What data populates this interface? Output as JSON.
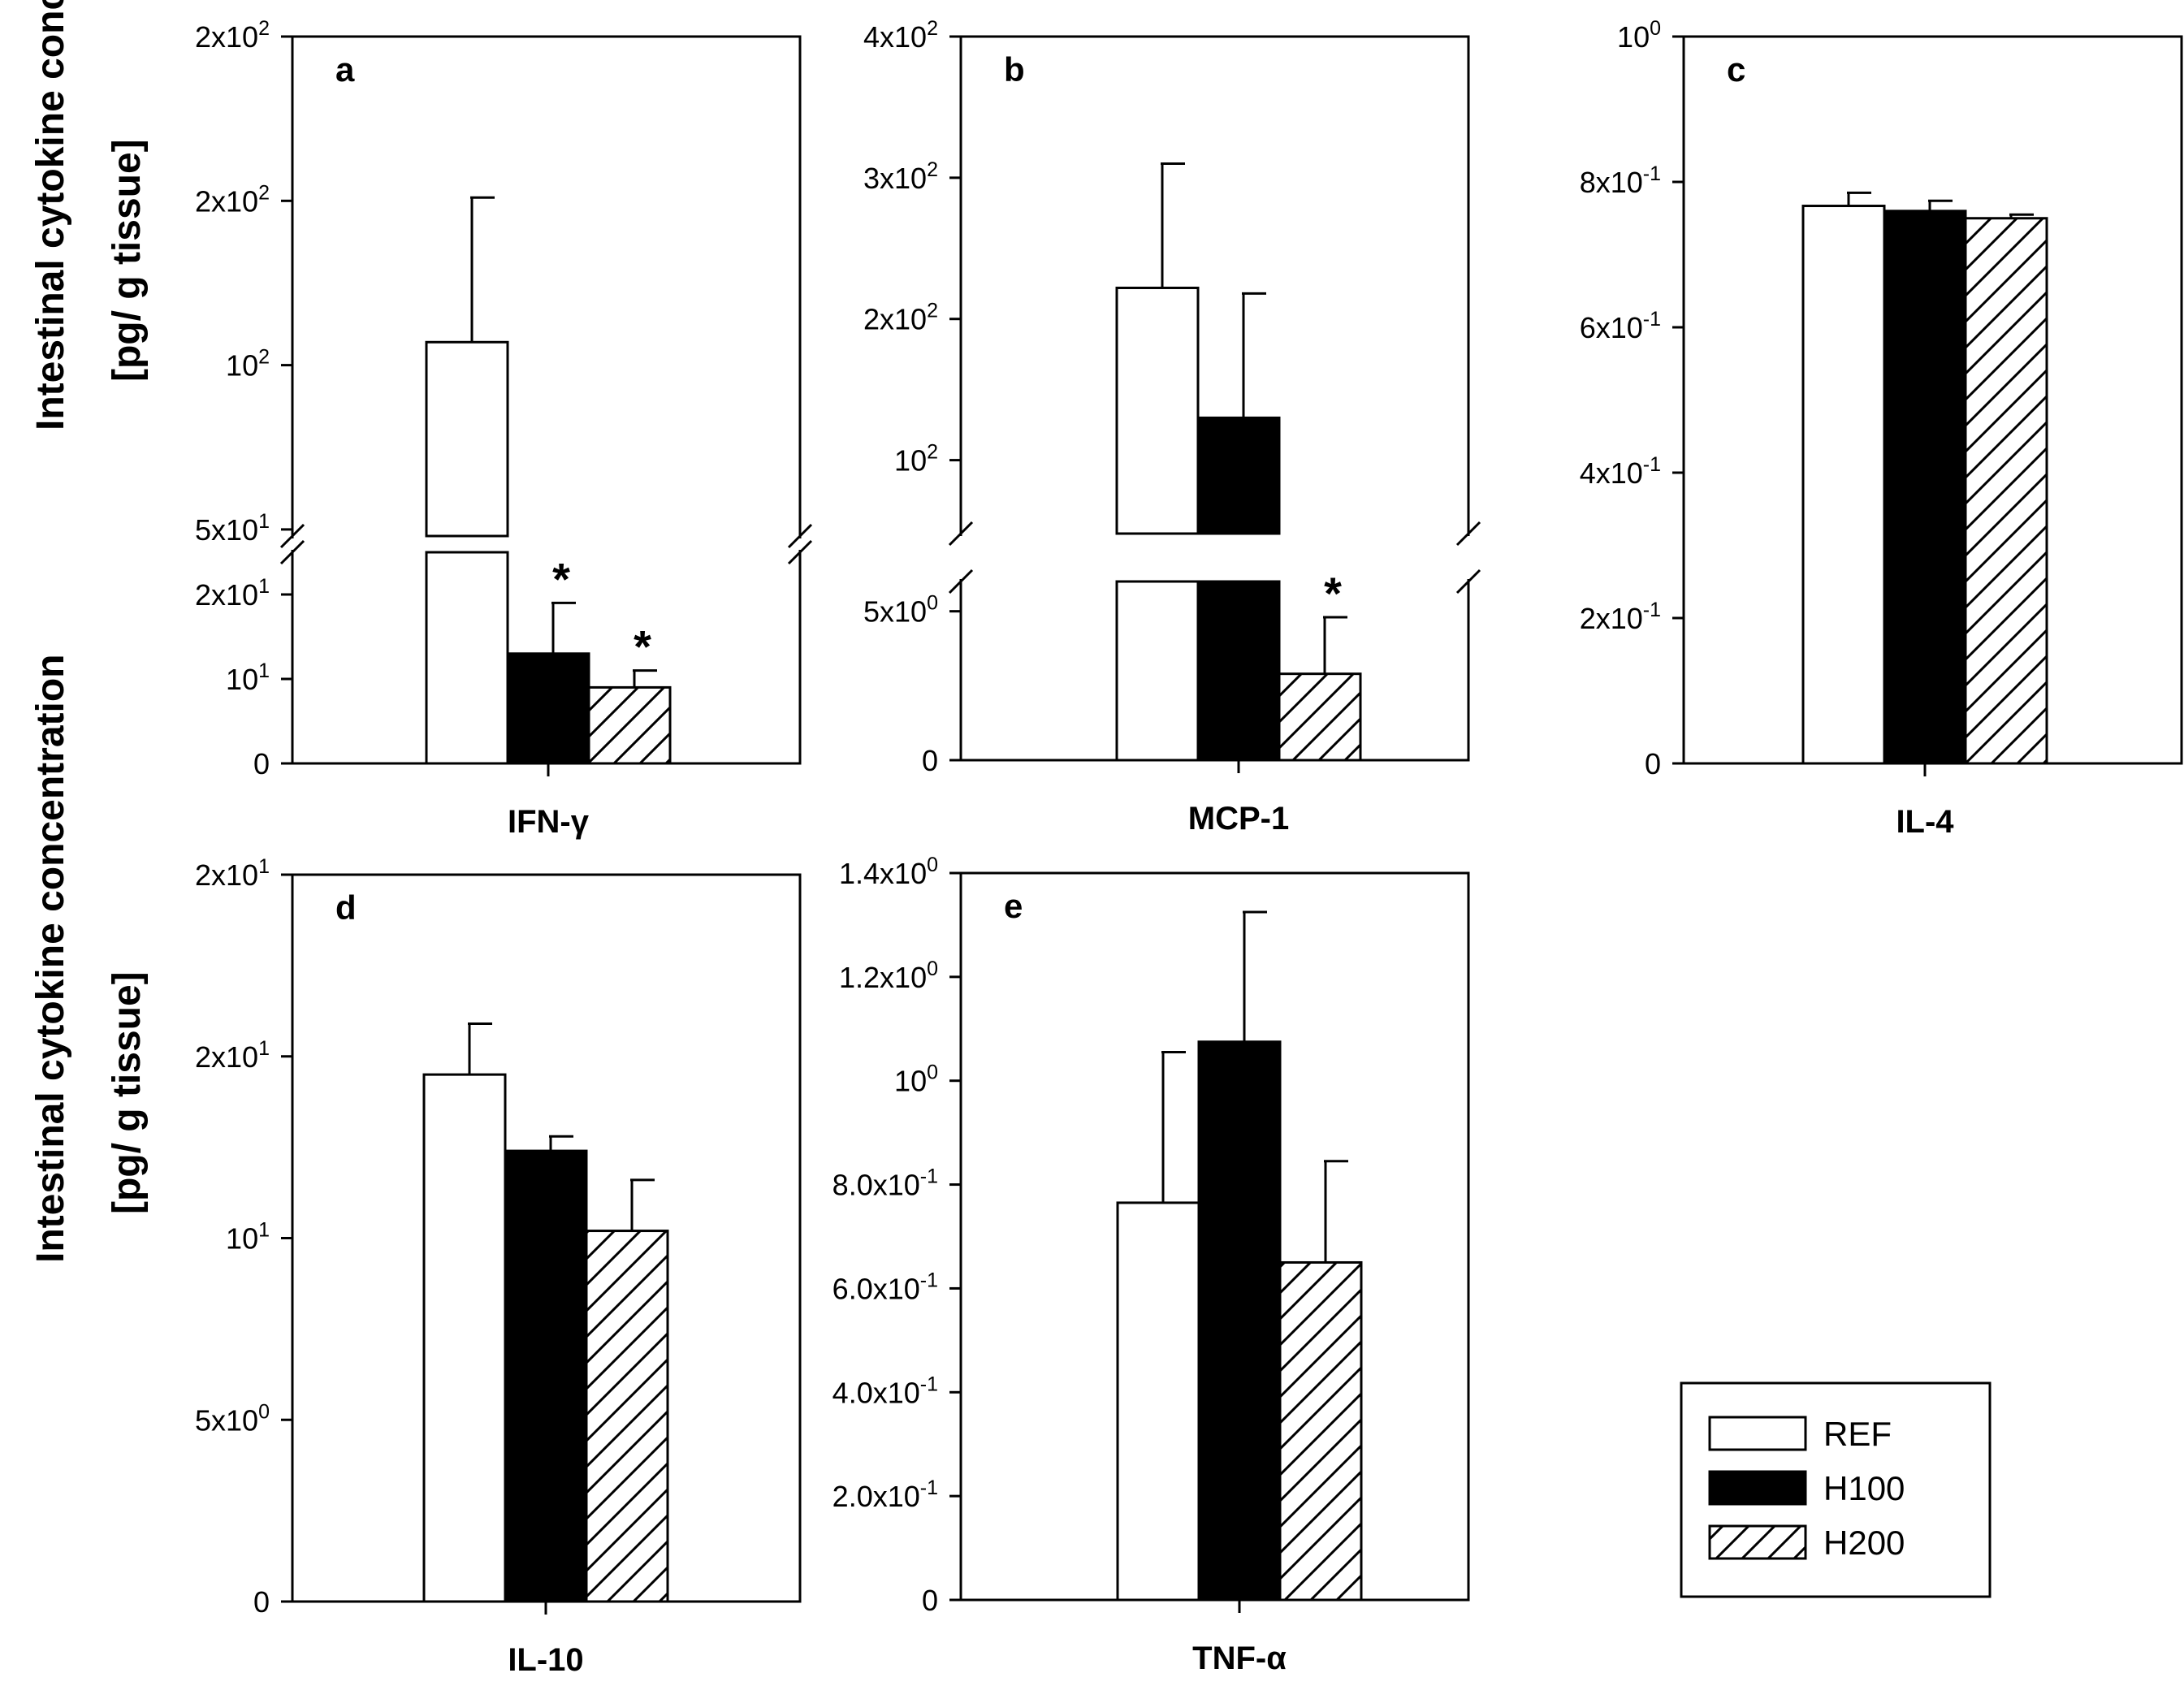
{
  "figure": {
    "ylabel_line1": "Intestinal cytokine concentration",
    "ylabel_line2": "[pg/ g tissue]"
  },
  "legend": [
    {
      "name": "REF",
      "fill": "white"
    },
    {
      "name": "H100",
      "fill": "black"
    },
    {
      "name": "H200",
      "fill": "hatch"
    }
  ],
  "chart_data": [
    {
      "panel": "a",
      "type": "bar",
      "xlabel": "IFN-γ",
      "broken_axis": true,
      "series": [
        {
          "name": "REF",
          "value": 107,
          "error": 44
        },
        {
          "name": "H100",
          "value": 13,
          "error": 6,
          "significant": true
        },
        {
          "name": "H200",
          "value": 9,
          "error": 2,
          "significant": true
        }
      ],
      "lower_ylim": [
        0,
        25
      ],
      "upper_ylim": [
        48,
        200
      ],
      "lower_ticks": [
        {
          "v": 0,
          "t": "0"
        },
        {
          "v": 10,
          "t": "10",
          "sup": "1"
        },
        {
          "v": 20,
          "t": "2x10",
          "sup": "1"
        }
      ],
      "upper_ticks": [
        {
          "v": 50,
          "t": "5x10",
          "sup": "1"
        },
        {
          "v": 100,
          "t": "10",
          "sup": "2"
        },
        {
          "v": 150,
          "t": "2x10",
          "sup": "2"
        },
        {
          "v": 200,
          "t": "2x10",
          "sup": "2"
        }
      ]
    },
    {
      "panel": "b",
      "type": "bar",
      "xlabel": "MCP-1",
      "broken_axis": true,
      "series": [
        {
          "name": "REF",
          "value": 222,
          "error": 88
        },
        {
          "name": "H100",
          "value": 130,
          "error": 88
        },
        {
          "name": "H200",
          "value": 2.9,
          "error": 1.9,
          "significant": true
        }
      ],
      "lower_ylim": [
        0,
        6
      ],
      "upper_ylim": [
        48,
        400
      ],
      "lower_ticks": [
        {
          "v": 0,
          "t": "0"
        },
        {
          "v": 5,
          "t": "5x10",
          "sup": "0"
        }
      ],
      "upper_ticks": [
        {
          "v": 100,
          "t": "10",
          "sup": "2"
        },
        {
          "v": 200,
          "t": "2x10",
          "sup": "2"
        },
        {
          "v": 300,
          "t": "3x10",
          "sup": "2"
        },
        {
          "v": 400,
          "t": "4x10",
          "sup": "2"
        }
      ]
    },
    {
      "panel": "c",
      "type": "bar",
      "xlabel": "IL-4",
      "broken_axis": false,
      "series": [
        {
          "name": "REF",
          "value": 0.767,
          "error": 0.018
        },
        {
          "name": "H100",
          "value": 0.76,
          "error": 0.014
        },
        {
          "name": "H200",
          "value": 0.75,
          "error": 0.005
        }
      ],
      "ylim": [
        0,
        1.0
      ],
      "ticks": [
        {
          "v": 0,
          "t": "0"
        },
        {
          "v": 0.2,
          "t": "2x10",
          "sup": "-1"
        },
        {
          "v": 0.4,
          "t": "4x10",
          "sup": "-1"
        },
        {
          "v": 0.6,
          "t": "6x10",
          "sup": "-1"
        },
        {
          "v": 0.8,
          "t": "8x10",
          "sup": "-1"
        },
        {
          "v": 1.0,
          "t": "10",
          "sup": "0"
        }
      ]
    },
    {
      "panel": "d",
      "type": "bar",
      "xlabel": "IL-10",
      "broken_axis": false,
      "series": [
        {
          "name": "REF",
          "value": 14.5,
          "error": 1.4
        },
        {
          "name": "H100",
          "value": 12.4,
          "error": 0.4
        },
        {
          "name": "H200",
          "value": 10.2,
          "error": 1.4
        }
      ],
      "ylim": [
        0,
        20
      ],
      "ticks": [
        {
          "v": 0,
          "t": "0"
        },
        {
          "v": 5,
          "t": "5x10",
          "sup": "0"
        },
        {
          "v": 10,
          "t": "10",
          "sup": "1"
        },
        {
          "v": 15,
          "t": "2x10",
          "sup": "1"
        },
        {
          "v": 20,
          "t": "2x10",
          "sup": "1"
        }
      ]
    },
    {
      "panel": "e",
      "type": "bar",
      "xlabel": "TNF-α",
      "broken_axis": false,
      "series": [
        {
          "name": "REF",
          "value": 0.765,
          "error": 0.29
        },
        {
          "name": "H100",
          "value": 1.075,
          "error": 0.25
        },
        {
          "name": "H200",
          "value": 0.65,
          "error": 0.195
        }
      ],
      "ylim": [
        0,
        1.4
      ],
      "ticks": [
        {
          "v": 0,
          "t": "0"
        },
        {
          "v": 0.2,
          "t": "2.0x10",
          "sup": "-1"
        },
        {
          "v": 0.4,
          "t": "4.0x10",
          "sup": "-1"
        },
        {
          "v": 0.6,
          "t": "6.0x10",
          "sup": "-1"
        },
        {
          "v": 0.8,
          "t": "8.0x10",
          "sup": "-1"
        },
        {
          "v": 1.0,
          "t": "10",
          "sup": "0"
        },
        {
          "v": 1.2,
          "t": "1.2x10",
          "sup": "0"
        },
        {
          "v": 1.4,
          "t": "1.4x10",
          "sup": "0"
        }
      ]
    }
  ]
}
